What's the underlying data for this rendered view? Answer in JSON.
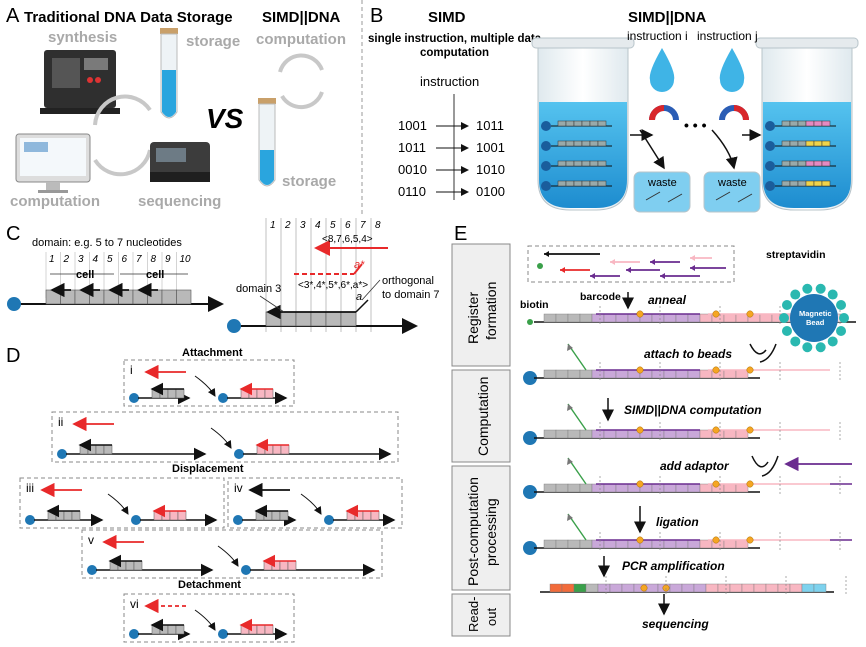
{
  "panels": {
    "A": {
      "letter": "A",
      "title": "Traditional DNA Data Storage",
      "synthesis": "synthesis",
      "storage": "storage",
      "computation": "computation",
      "sequencing": "sequencing",
      "vs": "VS",
      "simd_title": "SIMD||DNA",
      "computation2": "computation",
      "storage2": "storage"
    },
    "B": {
      "letter": "B",
      "simd_title": "SIMD",
      "simd_sub1": "single instruction, multiple data",
      "simd_sub2": "computation",
      "instruction": "instruction",
      "rows": [
        {
          "in": "1001",
          "out": "1011"
        },
        {
          "in": "1011",
          "out": "1001"
        },
        {
          "in": "0010",
          "out": "1010"
        },
        {
          "in": "0110",
          "out": "0100"
        }
      ],
      "simddna_title": "SIMD||DNA",
      "instr_i": "instruction i",
      "instr_j": "instruction j",
      "waste": "waste",
      "dots": "• • •"
    },
    "C": {
      "letter": "C",
      "domain_note": "domain: e.g. 5 to 7 nucleotides",
      "cell": "cell",
      "nums": [
        "1",
        "2",
        "3",
        "4",
        "5",
        "6",
        "7",
        "8",
        "9",
        "10"
      ],
      "nums_right": [
        "1",
        "2",
        "3",
        "4",
        "5",
        "6",
        "7",
        "8"
      ],
      "top_strand": "<8,7,6,5,4>",
      "bottom_strand": "<3*,4*,5*,6*,a*>",
      "a_star": "a*",
      "a": "a",
      "domain3": "domain 3",
      "orth1": "orthogonal",
      "orth2": "to domain 7"
    },
    "D": {
      "letter": "D",
      "attachment": "Attachment",
      "displacement": "Displacement",
      "detachment": "Detachment",
      "roman": [
        "i",
        "ii",
        "iii",
        "iv",
        "v",
        "vi"
      ]
    },
    "E": {
      "letter": "E",
      "stage1a": "Register",
      "stage1b": "formation",
      "stage2": "Computation",
      "stage3a": "Post-computation",
      "stage3b": "processing",
      "stage4a": "Read-",
      "stage4b": "out",
      "biotin": "biotin",
      "barcode": "barcode",
      "anneal": "anneal",
      "streptavidin": "streptavidin",
      "bead1": "Magnetic",
      "bead2": "Bead",
      "attach": "attach to beads",
      "simd_comp": "SIMD||DNA computation",
      "add_adaptor": "add adaptor",
      "ligation": "ligation",
      "pcr": "PCR amplification",
      "sequencing": "sequencing"
    }
  },
  "colors": {
    "blue": "#1f77b4",
    "red": "#e8292a",
    "pink": "#f8b7c2",
    "purple": "#6a2c8f",
    "lavender": "#c9a8d9",
    "gray": "#b9b9b9",
    "orange": "#f5a623",
    "green": "#3aa04a",
    "teal": "#2ab8b0",
    "liquid": "#3fb0e0",
    "water": "#4bb3e6"
  }
}
